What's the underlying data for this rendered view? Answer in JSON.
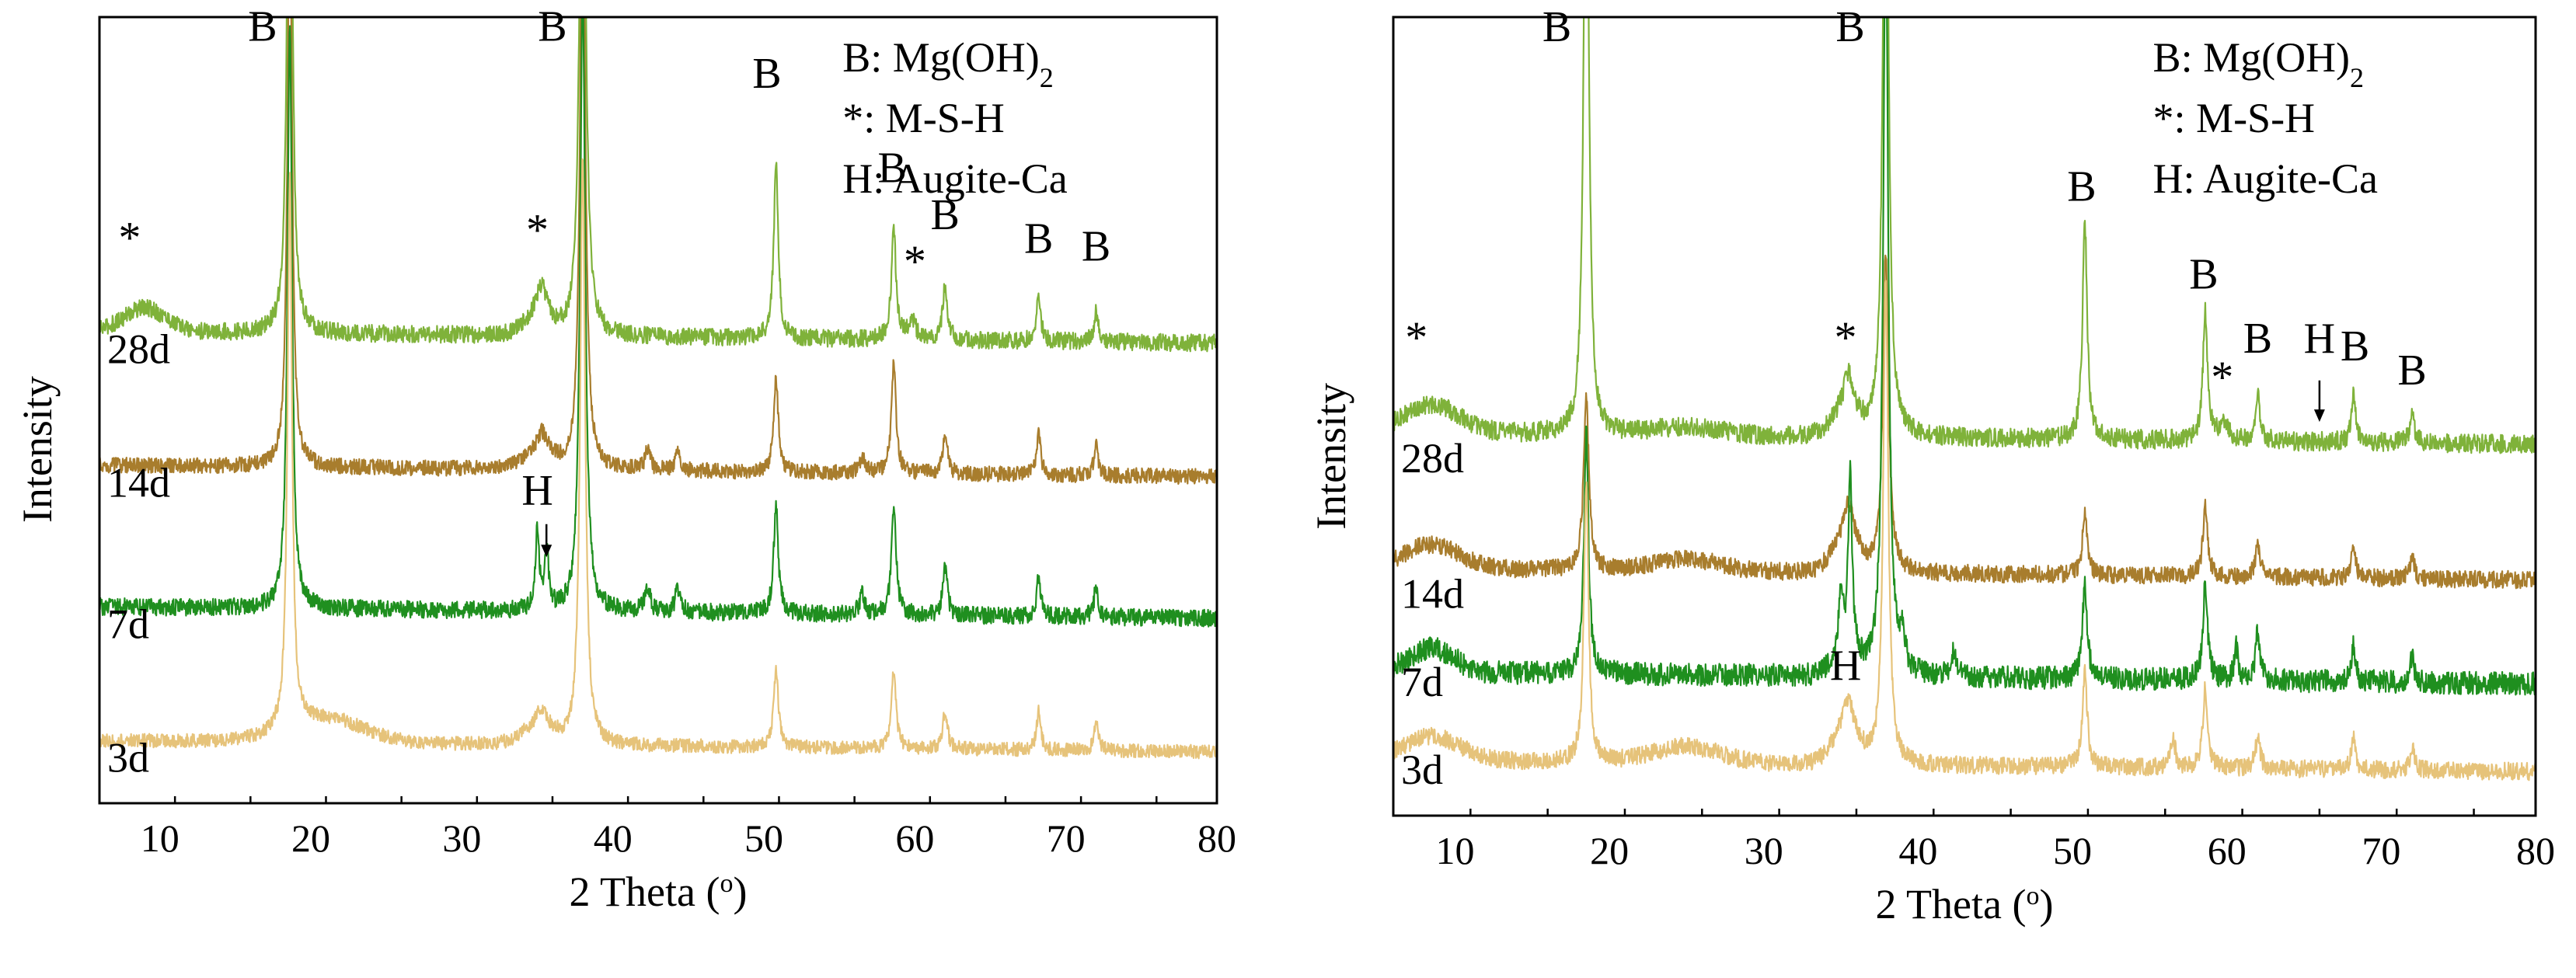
{
  "chart_data": [
    {
      "type": "line",
      "panel": "left",
      "xlabel": "2 Theta (o)",
      "xlabel_parts": {
        "main": "2 Theta (",
        "sup": "o",
        "tail": ")"
      },
      "ylabel": "Intensity",
      "xlim": [
        6,
        80
      ],
      "xticks": [
        10,
        20,
        30,
        40,
        50,
        60,
        70,
        80
      ],
      "ylim": [
        0,
        100
      ],
      "legend": {
        "position": "top-right",
        "lines": [
          {
            "base": "B: Mg(OH)",
            "sub": "2"
          },
          {
            "base": "*: M-S-H",
            "sub": ""
          },
          {
            "base": "H: Augite-Ca",
            "sub": ""
          }
        ]
      },
      "series": [
        {
          "name": "28d",
          "color": "#7fb23a",
          "baseline": 60,
          "hump": 3.0,
          "peaks": [
            [
              18.6,
              90,
              0.18
            ],
            [
              38.0,
              95,
              0.2
            ],
            [
              50.8,
              22,
              0.18
            ],
            [
              58.6,
              14,
              0.18
            ],
            [
              62.0,
              7,
              0.18
            ],
            [
              68.2,
              6,
              0.16
            ],
            [
              72.0,
              4,
              0.16
            ],
            [
              35.3,
              4,
              0.45
            ],
            [
              59.8,
              2.5,
              0.3
            ]
          ],
          "humps": [
            [
              9.0,
              3.0,
              2.0
            ],
            [
              35.0,
              2.0,
              1.2
            ]
          ],
          "noise": 1.0
        },
        {
          "name": "14d",
          "color": "#a87d2d",
          "baseline": 43,
          "hump": 2.0,
          "peaks": [
            [
              18.6,
              75,
              0.18
            ],
            [
              38.0,
              80,
              0.2
            ],
            [
              50.8,
              12,
              0.18
            ],
            [
              58.6,
              14,
              0.18
            ],
            [
              62.0,
              5,
              0.18
            ],
            [
              68.2,
              5,
              0.16
            ],
            [
              72.0,
              4,
              0.16
            ],
            [
              35.3,
              3,
              0.45
            ],
            [
              42.3,
              2.5,
              0.2
            ],
            [
              44.3,
              2.5,
              0.2
            ],
            [
              56.5,
              2,
              0.2
            ]
          ],
          "humps": [
            [
              35.0,
              1.5,
              1.5
            ]
          ],
          "noise": 0.9
        },
        {
          "name": "7d",
          "color": "#1f8f1f",
          "baseline": 25,
          "hump": 1.5,
          "peaks": [
            [
              18.6,
              75,
              0.18
            ],
            [
              38.0,
              80,
              0.2
            ],
            [
              50.8,
              14,
              0.18
            ],
            [
              58.6,
              14,
              0.18
            ],
            [
              62.0,
              6,
              0.18
            ],
            [
              68.2,
              5,
              0.16
            ],
            [
              72.0,
              4,
              0.16
            ],
            [
              35.0,
              10,
              0.15
            ],
            [
              35.6,
              8,
              0.15
            ],
            [
              42.3,
              3,
              0.2
            ],
            [
              44.3,
              3,
              0.2
            ],
            [
              56.5,
              2.5,
              0.2
            ]
          ],
          "humps": [],
          "noise": 1.0
        },
        {
          "name": "3d",
          "color": "#e6c37a",
          "baseline": 8,
          "hump": 4.0,
          "peaks": [
            [
              18.6,
              70,
              0.18
            ],
            [
              38.0,
              75,
              0.2
            ],
            [
              50.8,
              10,
              0.18
            ],
            [
              58.6,
              10,
              0.18
            ],
            [
              62.0,
              5,
              0.18
            ],
            [
              68.2,
              5,
              0.16
            ],
            [
              72.0,
              4,
              0.16
            ],
            [
              35.3,
              2.5,
              0.4
            ]
          ],
          "humps": [
            [
              21.0,
              3.0,
              3.5
            ],
            [
              35.0,
              2.0,
              1.5
            ]
          ],
          "noise": 0.8
        }
      ],
      "series_labels": [
        {
          "text": "28d",
          "y": 56
        },
        {
          "text": "14d",
          "y": 39
        },
        {
          "text": "7d",
          "y": 21
        },
        {
          "text": "3d",
          "y": 4
        }
      ],
      "annotations": [
        {
          "text": "B",
          "x": 16.8,
          "y": 97
        },
        {
          "text": "B",
          "x": 36.0,
          "y": 97
        },
        {
          "text": "B",
          "x": 50.2,
          "y": 91
        },
        {
          "text": "B",
          "x": 58.5,
          "y": 79
        },
        {
          "text": "B",
          "x": 62.0,
          "y": 73
        },
        {
          "text": "B",
          "x": 68.2,
          "y": 70
        },
        {
          "text": "B",
          "x": 72.0,
          "y": 69
        },
        {
          "text": "*",
          "x": 8.0,
          "y": 70
        },
        {
          "text": "*",
          "x": 35.0,
          "y": 71
        },
        {
          "text": "*",
          "x": 60.0,
          "y": 67
        },
        {
          "text": "H",
          "x": 35.0,
          "y": 38
        }
      ],
      "arrows": [
        {
          "x": 35.6,
          "y_from": 35.5,
          "y_to": 31.5
        }
      ]
    },
    {
      "type": "line",
      "panel": "right",
      "xlabel": "2 Theta (o)",
      "xlabel_parts": {
        "main": "2 Theta (",
        "sup": "o",
        "tail": ")"
      },
      "ylabel": "Intensity",
      "xlim": [
        6,
        80
      ],
      "xticks": [
        10,
        20,
        30,
        40,
        50,
        60,
        70,
        80
      ],
      "ylim": [
        0,
        100
      ],
      "legend": {
        "position": "top-right",
        "lines": [
          {
            "base": "B: Mg(OH)",
            "sub": "2"
          },
          {
            "base": "*: M-S-H",
            "sub": ""
          },
          {
            "base": "H: Augite-Ca",
            "sub": ""
          }
        ]
      },
      "series": [
        {
          "name": "28d",
          "color": "#7fb23a",
          "baseline": 48,
          "hump": 3.0,
          "peaks": [
            [
              18.5,
              95,
              0.18
            ],
            [
              37.9,
              95,
              0.2
            ],
            [
              50.8,
              27,
              0.18
            ],
            [
              58.6,
              16,
              0.18
            ],
            [
              62.0,
              6,
              0.18
            ],
            [
              68.2,
              6,
              0.16
            ],
            [
              72.0,
              4,
              0.16
            ],
            [
              35.5,
              5,
              0.4
            ],
            [
              59.8,
              2.5,
              0.3
            ]
          ],
          "humps": [
            [
              8.5,
              3.5,
              2.5
            ],
            [
              25.0,
              1.0,
              3.0
            ],
            [
              35.2,
              2.5,
              1.2
            ]
          ],
          "noise": 1.1
        },
        {
          "name": "14d",
          "color": "#a87d2d",
          "baseline": 31,
          "hump": 2.0,
          "peaks": [
            [
              18.5,
              22,
              0.2
            ],
            [
              37.9,
              40,
              0.22
            ],
            [
              50.8,
              8,
              0.18
            ],
            [
              58.6,
              9,
              0.18
            ],
            [
              62.0,
              4,
              0.18
            ],
            [
              68.2,
              4,
              0.16
            ],
            [
              72.0,
              3,
              0.16
            ],
            [
              35.5,
              5,
              0.35
            ]
          ],
          "humps": [
            [
              8.5,
              3.0,
              2.5
            ],
            [
              25.0,
              1.5,
              3.0
            ],
            [
              35.3,
              4.0,
              1.2
            ]
          ],
          "noise": 1.0
        },
        {
          "name": "7d",
          "color": "#1f8f1f",
          "baseline": 18,
          "hump": 2.0,
          "peaks": [
            [
              18.5,
              30,
              0.18
            ],
            [
              37.9,
              95,
              0.2
            ],
            [
              50.8,
              12,
              0.18
            ],
            [
              58.6,
              12,
              0.18
            ],
            [
              62.0,
              6,
              0.18
            ],
            [
              60.6,
              4,
              0.15
            ],
            [
              68.2,
              5,
              0.16
            ],
            [
              72.0,
              3,
              0.16
            ],
            [
              35.0,
              8,
              0.15
            ],
            [
              35.6,
              22,
              0.15
            ],
            [
              42.3,
              3,
              0.2
            ],
            [
              39.0,
              4,
              0.2
            ]
          ],
          "humps": [
            [
              8.5,
              3.0,
              2.0
            ],
            [
              35.3,
              3.0,
              1.0
            ]
          ],
          "noise": 1.3
        },
        {
          "name": "3d",
          "color": "#e6c37a",
          "baseline": 7,
          "hump": 4.0,
          "peaks": [
            [
              18.5,
              35,
              0.18
            ],
            [
              37.9,
              60,
              0.2
            ],
            [
              50.8,
              12,
              0.18
            ],
            [
              58.6,
              10,
              0.18
            ],
            [
              62.0,
              4,
              0.18
            ],
            [
              68.2,
              4,
              0.16
            ],
            [
              72.0,
              3,
              0.16
            ],
            [
              56.5,
              4,
              0.18
            ],
            [
              35.5,
              4,
              0.35
            ]
          ],
          "humps": [
            [
              8.5,
              3.0,
              2.5
            ],
            [
              25.0,
              2.0,
              3.0
            ],
            [
              35.3,
              4.0,
              1.2
            ]
          ],
          "noise": 1.0
        }
      ],
      "series_labels": [
        {
          "text": "28d",
          "y": 43
        },
        {
          "text": "14d",
          "y": 26
        },
        {
          "text": "7d",
          "y": 15
        },
        {
          "text": "3d",
          "y": 4
        }
      ],
      "annotations": [
        {
          "text": "B",
          "x": 16.6,
          "y": 97
        },
        {
          "text": "B",
          "x": 35.6,
          "y": 97
        },
        {
          "text": "B",
          "x": 50.6,
          "y": 77
        },
        {
          "text": "B",
          "x": 58.5,
          "y": 66
        },
        {
          "text": "B",
          "x": 62.0,
          "y": 58
        },
        {
          "text": "H",
          "x": 66.0,
          "y": 58
        },
        {
          "text": "B",
          "x": 68.3,
          "y": 57
        },
        {
          "text": "B",
          "x": 72.0,
          "y": 54
        },
        {
          "text": "*",
          "x": 7.5,
          "y": 58
        },
        {
          "text": "*",
          "x": 35.3,
          "y": 58
        },
        {
          "text": "*",
          "x": 59.7,
          "y": 53
        },
        {
          "text": "H",
          "x": 35.3,
          "y": 17
        }
      ],
      "arrows": [
        {
          "x": 66.0,
          "y_from": 54.5,
          "y_to": 49.5
        }
      ]
    }
  ]
}
